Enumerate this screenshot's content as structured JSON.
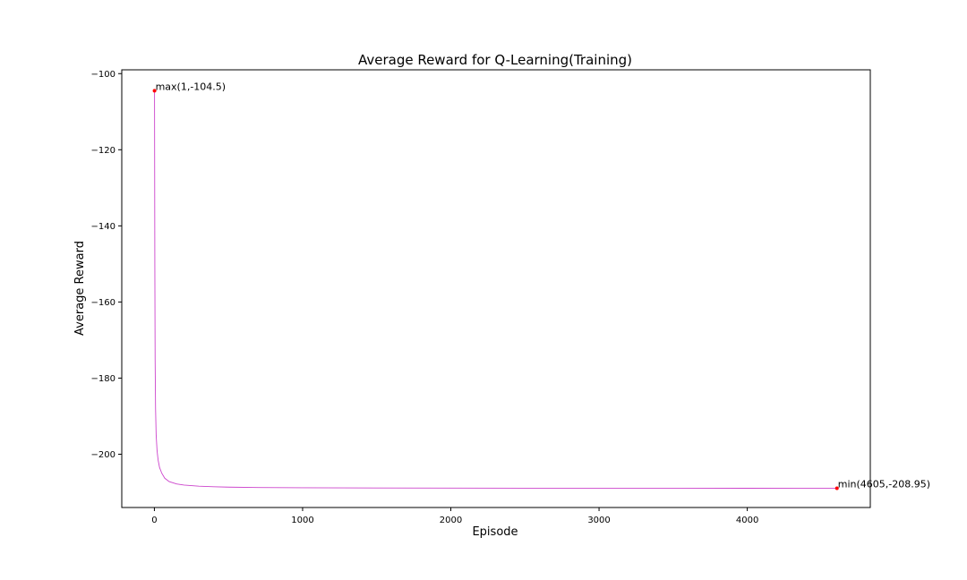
{
  "chart_data": {
    "type": "line",
    "title": "Average Reward for Q-Learning(Training)",
    "xlabel": "Episode",
    "ylabel": "Average Reward",
    "xlim": [
      -220,
      4830
    ],
    "ylim": [
      -214,
      -99
    ],
    "xticks": [
      0,
      1000,
      2000,
      3000,
      4000
    ],
    "yticks": [
      -100,
      -120,
      -140,
      -160,
      -180,
      -200
    ],
    "xtick_labels": [
      "0",
      "1000",
      "2000",
      "3000",
      "4000"
    ],
    "ytick_labels": [
      "−100",
      "−120",
      "−140",
      "−160",
      "−180",
      "−200"
    ],
    "grid": false,
    "legend": "none",
    "line_color": "#cc44cc",
    "marker_color": "#ff0000",
    "series": [
      {
        "x": [
          1,
          3,
          5,
          8,
          12,
          18,
          25,
          35,
          50,
          70,
          100,
          150,
          200,
          300,
          400,
          500,
          700,
          1000,
          1500,
          2000,
          2500,
          3000,
          3500,
          4000,
          4605
        ],
        "values": [
          -104.5,
          -150,
          -175,
          -188,
          -195,
          -199,
          -201.5,
          -203.5,
          -205,
          -206.3,
          -207.2,
          -207.8,
          -208.1,
          -208.4,
          -208.55,
          -208.65,
          -208.75,
          -208.82,
          -208.88,
          -208.9,
          -208.92,
          -208.93,
          -208.94,
          -208.945,
          -208.95
        ]
      }
    ],
    "annotations": [
      {
        "x": 1,
        "y": -104.5,
        "text": "max(1,-104.5)"
      },
      {
        "x": 4605,
        "y": -208.95,
        "text": "min(4605,-208.95)"
      }
    ]
  }
}
